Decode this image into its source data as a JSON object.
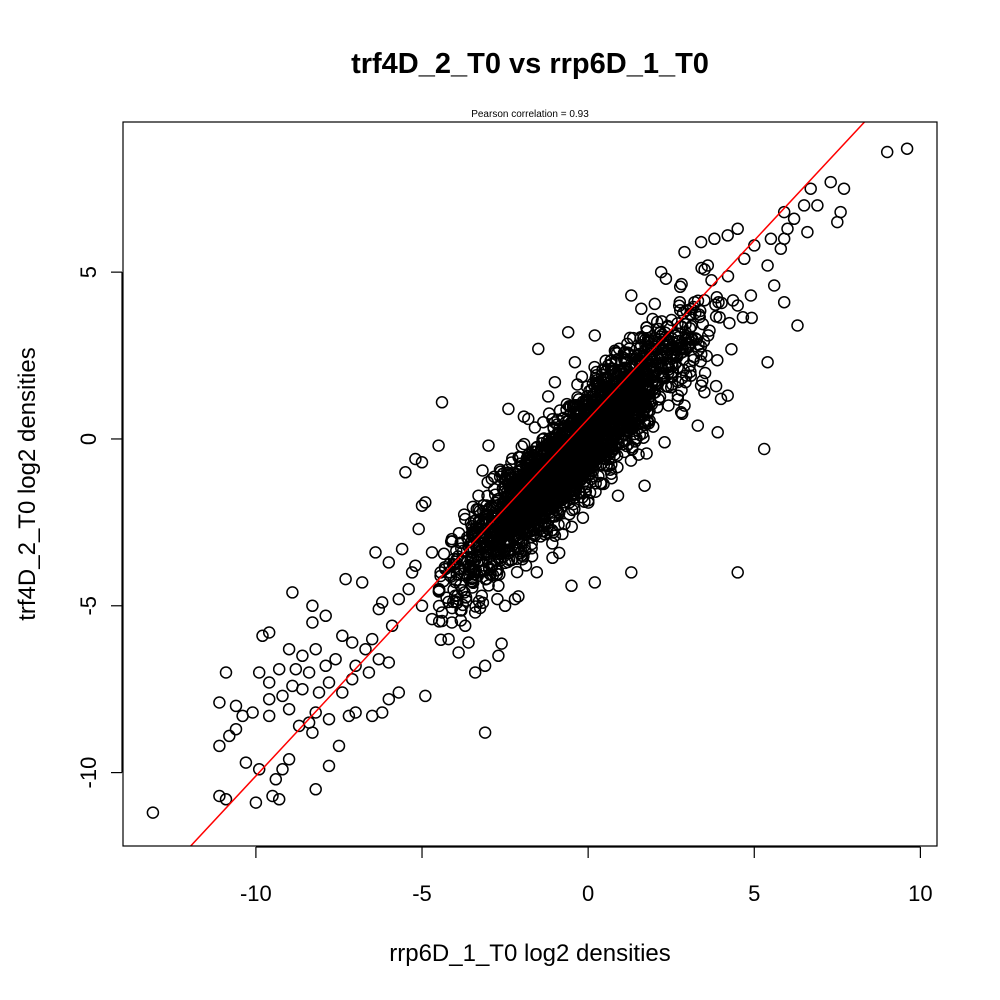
{
  "chart_data": {
    "type": "scatter",
    "title": "trf4D_2_T0 vs rrp6D_1_T0",
    "subtitle": "Pearson correlation =  0.93",
    "xlabel": "rrp6D_1_T0 log2 densities",
    "ylabel": "trf4D_2_T0 log2 densities",
    "xlim": [
      -14.0,
      10.5
    ],
    "ylim": [
      -12.2,
      9.5
    ],
    "x_ticks": [
      -10,
      -5,
      0,
      5,
      10
    ],
    "y_ticks": [
      -10,
      -5,
      0,
      5
    ],
    "x_tick_labels": [
      "-10",
      "-5",
      "0",
      "5",
      "10"
    ],
    "y_tick_labels": [
      "-10",
      "-5",
      "0",
      "5"
    ],
    "grid": false,
    "legend": "none",
    "marker": "open-circle",
    "point_color": "#000000",
    "fit_line": {
      "color": "#ff0000",
      "slope": 1.07,
      "intercept": 0.6
    },
    "core_cloud": {
      "n": 2600,
      "x_range": [
        -4.5,
        5.5
      ],
      "slope": 1.0,
      "residual_sd": 0.75,
      "seed": 7
    },
    "points": [
      [
        -13.1,
        -11.2
      ],
      [
        -10.9,
        -10.8
      ],
      [
        -11.1,
        -10.7
      ],
      [
        -10.0,
        -10.9
      ],
      [
        -9.5,
        -10.7
      ],
      [
        -9.3,
        -10.8
      ],
      [
        -9.4,
        -10.2
      ],
      [
        -9.2,
        -9.9
      ],
      [
        -9.0,
        -9.6
      ],
      [
        -8.2,
        -10.5
      ],
      [
        -7.8,
        -9.8
      ],
      [
        -7.5,
        -9.2
      ],
      [
        -9.9,
        -9.9
      ],
      [
        -10.3,
        -9.7
      ],
      [
        -11.1,
        -9.2
      ],
      [
        -10.8,
        -8.9
      ],
      [
        -10.6,
        -8.7
      ],
      [
        -10.4,
        -8.3
      ],
      [
        -10.1,
        -8.2
      ],
      [
        -9.6,
        -8.3
      ],
      [
        -10.6,
        -8.0
      ],
      [
        -11.1,
        -7.9
      ],
      [
        -10.9,
        -7.0
      ],
      [
        -9.9,
        -7.0
      ],
      [
        -9.6,
        -7.3
      ],
      [
        -9.3,
        -6.9
      ],
      [
        -9.2,
        -7.7
      ],
      [
        -8.9,
        -7.4
      ],
      [
        -8.6,
        -7.5
      ],
      [
        -8.2,
        -8.2
      ],
      [
        -8.4,
        -8.5
      ],
      [
        -8.7,
        -8.6
      ],
      [
        -9.0,
        -8.1
      ],
      [
        -8.3,
        -8.8
      ],
      [
        -7.8,
        -8.4
      ],
      [
        -7.2,
        -8.3
      ],
      [
        -7.0,
        -8.2
      ],
      [
        -6.5,
        -8.3
      ],
      [
        -6.2,
        -8.2
      ],
      [
        -6.0,
        -7.8
      ],
      [
        -5.7,
        -7.6
      ],
      [
        -4.9,
        -7.7
      ],
      [
        -7.4,
        -7.6
      ],
      [
        -7.8,
        -7.3
      ],
      [
        -8.4,
        -7.0
      ],
      [
        -8.8,
        -6.9
      ],
      [
        -8.2,
        -6.3
      ],
      [
        -8.6,
        -6.5
      ],
      [
        -9.0,
        -6.3
      ],
      [
        -9.6,
        -5.8
      ],
      [
        -9.8,
        -5.9
      ],
      [
        -8.3,
        -5.5
      ],
      [
        -7.9,
        -5.3
      ],
      [
        -7.4,
        -5.9
      ],
      [
        -7.1,
        -6.1
      ],
      [
        -6.7,
        -6.3
      ],
      [
        -6.3,
        -6.6
      ],
      [
        -6.0,
        -6.7
      ],
      [
        -7.0,
        -6.8
      ],
      [
        -6.6,
        -7.0
      ],
      [
        -7.1,
        -7.2
      ],
      [
        -8.9,
        -4.6
      ],
      [
        -8.3,
        -5.0
      ],
      [
        -7.3,
        -4.2
      ],
      [
        -6.8,
        -4.3
      ],
      [
        -6.2,
        -4.9
      ],
      [
        -6.4,
        -3.4
      ],
      [
        -6.0,
        -3.7
      ],
      [
        -5.6,
        -3.3
      ],
      [
        -5.2,
        -3.8
      ],
      [
        -5.1,
        -2.7
      ],
      [
        -5.0,
        -2.0
      ],
      [
        -4.9,
        -1.9
      ],
      [
        -5.4,
        -4.5
      ],
      [
        -5.7,
        -4.8
      ],
      [
        -5.0,
        -5.0
      ],
      [
        -4.7,
        -5.4
      ],
      [
        -4.4,
        -5.2
      ],
      [
        -4.1,
        -5.5
      ],
      [
        -3.7,
        -5.6
      ],
      [
        -3.4,
        -5.2
      ],
      [
        -2.5,
        -5.0
      ],
      [
        -2.2,
        -4.8
      ],
      [
        -3.6,
        -6.1
      ],
      [
        -3.9,
        -6.4
      ],
      [
        -3.4,
        -7.0
      ],
      [
        -3.1,
        -6.8
      ],
      [
        -2.7,
        -6.5
      ],
      [
        -4.2,
        -6.0
      ],
      [
        -3.1,
        -8.8
      ],
      [
        -5.5,
        -1.0
      ],
      [
        -5.2,
        -0.6
      ],
      [
        -4.4,
        1.1
      ],
      [
        -5.0,
        -0.7
      ],
      [
        -4.5,
        -0.2
      ],
      [
        -3.0,
        -0.2
      ],
      [
        -2.4,
        0.9
      ],
      [
        -1.5,
        2.7
      ],
      [
        -0.6,
        3.2
      ],
      [
        0.2,
        3.1
      ],
      [
        1.3,
        4.3
      ],
      [
        1.6,
        3.9
      ],
      [
        2.2,
        5.0
      ],
      [
        2.9,
        5.6
      ],
      [
        3.4,
        5.9
      ],
      [
        3.8,
        6.0
      ],
      [
        4.5,
        6.3
      ],
      [
        4.7,
        5.4
      ],
      [
        5.0,
        5.8
      ],
      [
        5.5,
        6.0
      ],
      [
        5.9,
        6.8
      ],
      [
        6.5,
        7.0
      ],
      [
        6.7,
        7.5
      ],
      [
        6.9,
        7.0
      ],
      [
        7.3,
        7.7
      ],
      [
        7.6,
        6.8
      ],
      [
        7.7,
        7.5
      ],
      [
        7.5,
        6.5
      ],
      [
        6.2,
        6.6
      ],
      [
        6.6,
        6.2
      ],
      [
        6.0,
        6.3
      ],
      [
        5.9,
        6.0
      ],
      [
        5.8,
        5.7
      ],
      [
        4.2,
        6.1
      ],
      [
        3.6,
        5.2
      ],
      [
        5.4,
        5.2
      ],
      [
        5.6,
        4.6
      ],
      [
        5.9,
        4.1
      ],
      [
        6.3,
        3.4
      ],
      [
        5.4,
        2.3
      ],
      [
        5.3,
        -0.3
      ],
      [
        3.9,
        0.2
      ],
      [
        4.0,
        1.2
      ],
      [
        4.2,
        1.3
      ],
      [
        3.5,
        1.4
      ],
      [
        3.4,
        1.6
      ],
      [
        2.9,
        1.0
      ],
      [
        4.5,
        4.0
      ],
      [
        4.9,
        4.3
      ],
      [
        9.0,
        8.6
      ],
      [
        9.6,
        8.7
      ],
      [
        4.5,
        -4.0
      ],
      [
        1.3,
        -4.0
      ],
      [
        0.2,
        -4.3
      ],
      [
        -0.5,
        -4.4
      ],
      [
        1.7,
        -1.4
      ],
      [
        0.9,
        -1.7
      ],
      [
        -1.0,
        -2.9
      ],
      [
        -2.4,
        -1.7
      ],
      [
        -2.9,
        -1.2
      ],
      [
        -3.3,
        -1.7
      ],
      [
        -4.1,
        -3.0
      ],
      [
        -3.7,
        -2.4
      ],
      [
        2.3,
        -0.1
      ],
      [
        2.8,
        0.8
      ],
      [
        3.3,
        0.4
      ],
      [
        -0.4,
        2.3
      ],
      [
        -1.0,
        1.7
      ],
      [
        -1.8,
        0.6
      ],
      [
        0.6,
        2.2
      ],
      [
        1.1,
        2.6
      ],
      [
        -6.3,
        -5.1
      ],
      [
        -5.9,
        -5.6
      ],
      [
        -6.5,
        -6.0
      ],
      [
        -7.6,
        -6.6
      ],
      [
        -7.9,
        -6.8
      ],
      [
        -8.1,
        -7.6
      ],
      [
        -9.6,
        -7.8
      ],
      [
        -4.7,
        -3.4
      ],
      [
        -4.3,
        -3.9
      ],
      [
        -5.3,
        -4.0
      ],
      [
        -4.0,
        -4.7
      ],
      [
        -3.2,
        -4.7
      ],
      [
        -2.7,
        -4.4
      ]
    ]
  }
}
